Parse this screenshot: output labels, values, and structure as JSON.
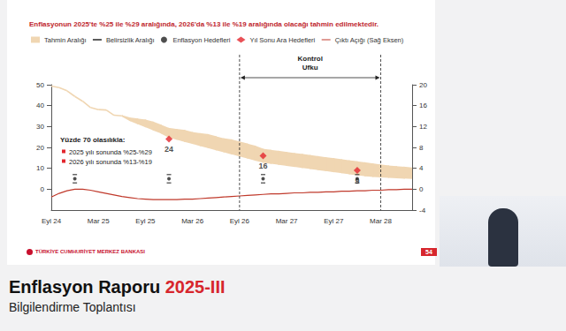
{
  "page": {
    "heading": "Enflasyon Raporu",
    "heading_highlight": "2025-III",
    "subheading": "Bilgilendirme Toplantısı",
    "logo_text": "TÜRKİYE CUMHURİYET MERKEZ BANKASI",
    "slide_number": "54"
  },
  "chart_data": {
    "type": "line",
    "title": "Enflasyonun 2025'te %25 ile %29 aralığında, 2026'da %13 ile %19 aralığında olacağı tahmin edilmektedir.",
    "categories": [
      "Eyl 24",
      null,
      null,
      null,
      null,
      null,
      "Mar 25",
      null,
      null,
      null,
      null,
      null,
      "Eyl 25",
      null,
      null,
      null,
      null,
      null,
      "Mar 26",
      null,
      null,
      null,
      null,
      null,
      "Eyl 26",
      null,
      null,
      null,
      null,
      null,
      "Mar 27",
      null,
      null,
      null,
      null,
      null,
      "Eyl 27",
      null,
      null,
      null,
      null,
      null,
      "Mar 28",
      null,
      null,
      null,
      null
    ],
    "ylim": [
      -10,
      50
    ],
    "yticks": [
      0,
      10,
      20,
      30,
      40,
      50
    ],
    "y2lim": [
      -4,
      20
    ],
    "y2ticks": [
      -4,
      0,
      4,
      8,
      12,
      16,
      20
    ],
    "grid": false,
    "legend": "top",
    "series": [
      {
        "name": "Tahmin Aralığı",
        "type": "band",
        "color": "#f0d6b2",
        "lower": [
          49.4,
          48.6,
          47.1,
          44.4,
          42.1,
          39.1,
          38.1,
          37.9,
          35.4,
          35.1,
          33.0,
          31.5,
          30,
          28.5,
          27,
          25,
          24,
          23,
          22,
          21,
          20,
          19,
          18,
          17,
          16,
          15,
          14,
          13,
          12.5,
          12,
          11.5,
          11,
          10.5,
          10,
          9.5,
          9,
          8.5,
          8,
          7.5,
          7,
          6.5,
          6.2,
          6,
          5.8,
          5.6,
          5.4,
          5.2
        ],
        "upper": [
          49.4,
          48.6,
          47.1,
          44.4,
          42.1,
          39.1,
          38.1,
          37.9,
          35.4,
          35.1,
          34,
          33.5,
          33,
          32,
          30.5,
          29,
          28.5,
          28,
          27,
          26.5,
          26,
          25,
          24,
          23.5,
          22.5,
          21.5,
          20.5,
          19,
          18.5,
          18,
          17.5,
          17,
          16.5,
          16,
          15.5,
          15,
          14.5,
          14,
          13.5,
          13,
          12.5,
          12,
          11.5,
          11,
          10.7,
          10.4,
          10
        ]
      },
      {
        "name": "Belirsizlik Aralığı",
        "type": "range",
        "color": "#333333",
        "marker": "dash",
        "low": [
          null,
          null,
          null,
          3,
          null,
          null,
          null,
          null,
          null,
          null,
          null,
          null,
          null,
          null,
          null,
          3,
          null,
          null,
          null,
          null,
          null,
          null,
          null,
          null,
          null,
          null,
          null,
          3,
          null,
          null,
          null,
          null,
          null,
          null,
          null,
          null,
          null,
          null,
          null,
          3,
          null,
          null,
          null,
          null,
          null,
          null,
          null
        ],
        "high": [
          null,
          null,
          null,
          7,
          null,
          null,
          null,
          null,
          null,
          null,
          null,
          null,
          null,
          null,
          null,
          7,
          null,
          null,
          null,
          null,
          null,
          null,
          null,
          null,
          null,
          null,
          null,
          7,
          null,
          null,
          null,
          null,
          null,
          null,
          null,
          null,
          null,
          null,
          null,
          7,
          null,
          null,
          null,
          null,
          null,
          null,
          null
        ]
      },
      {
        "name": "Enflasyon Hedefleri",
        "type": "scatter",
        "color": "#222222",
        "marker": "circle",
        "values": [
          null,
          null,
          null,
          5,
          null,
          null,
          null,
          null,
          null,
          null,
          null,
          null,
          null,
          null,
          null,
          5,
          null,
          null,
          null,
          null,
          null,
          null,
          null,
          null,
          null,
          null,
          null,
          5,
          null,
          null,
          null,
          null,
          null,
          null,
          null,
          null,
          null,
          null,
          null,
          5,
          null,
          null,
          null,
          null,
          null,
          null,
          null
        ]
      },
      {
        "name": "Yıl Sonu Ara Hedefleri",
        "type": "scatter",
        "color": "#e3262d",
        "marker": "diamond",
        "data_labels": true,
        "values": [
          null,
          null,
          null,
          null,
          null,
          null,
          null,
          null,
          null,
          null,
          null,
          null,
          null,
          null,
          null,
          24,
          null,
          null,
          null,
          null,
          null,
          null,
          null,
          null,
          null,
          null,
          null,
          16,
          null,
          null,
          null,
          null,
          null,
          null,
          null,
          null,
          null,
          null,
          null,
          9,
          null,
          null,
          null,
          null,
          null,
          null,
          null
        ]
      },
      {
        "name": "Çıktı Açığı (Sağ Eksen)",
        "type": "line",
        "color": "#c0392b",
        "axis": "y2",
        "values": [
          -1.5,
          -0.8,
          -0.3,
          0,
          0,
          -0.2,
          -0.5,
          -0.8,
          -1.1,
          -1.4,
          -1.6,
          -1.8,
          -1.9,
          -2.0,
          -2.0,
          -2.0,
          -2.0,
          -1.9,
          -1.9,
          -1.8,
          -1.7,
          -1.6,
          -1.5,
          -1.4,
          -1.3,
          -1.2,
          -1.1,
          -1.0,
          -0.9,
          -0.9,
          -0.8,
          -0.7,
          -0.7,
          -0.6,
          -0.6,
          -0.5,
          -0.5,
          -0.4,
          -0.4,
          -0.3,
          -0.3,
          -0.2,
          -0.2,
          -0.1,
          -0.1,
          0,
          0
        ]
      }
    ],
    "annotations": [
      {
        "type": "span",
        "text": "Kontrol Ufku",
        "x_from": "Eyl 26",
        "x_to": "Mar 28"
      },
      {
        "type": "text",
        "title": "Yüzde 70 olasılıkla:",
        "items": [
          "2025 yılı sonunda %25-%29",
          "2026 yılı sonunda %13-%19"
        ],
        "color": "#e3262d"
      }
    ]
  }
}
